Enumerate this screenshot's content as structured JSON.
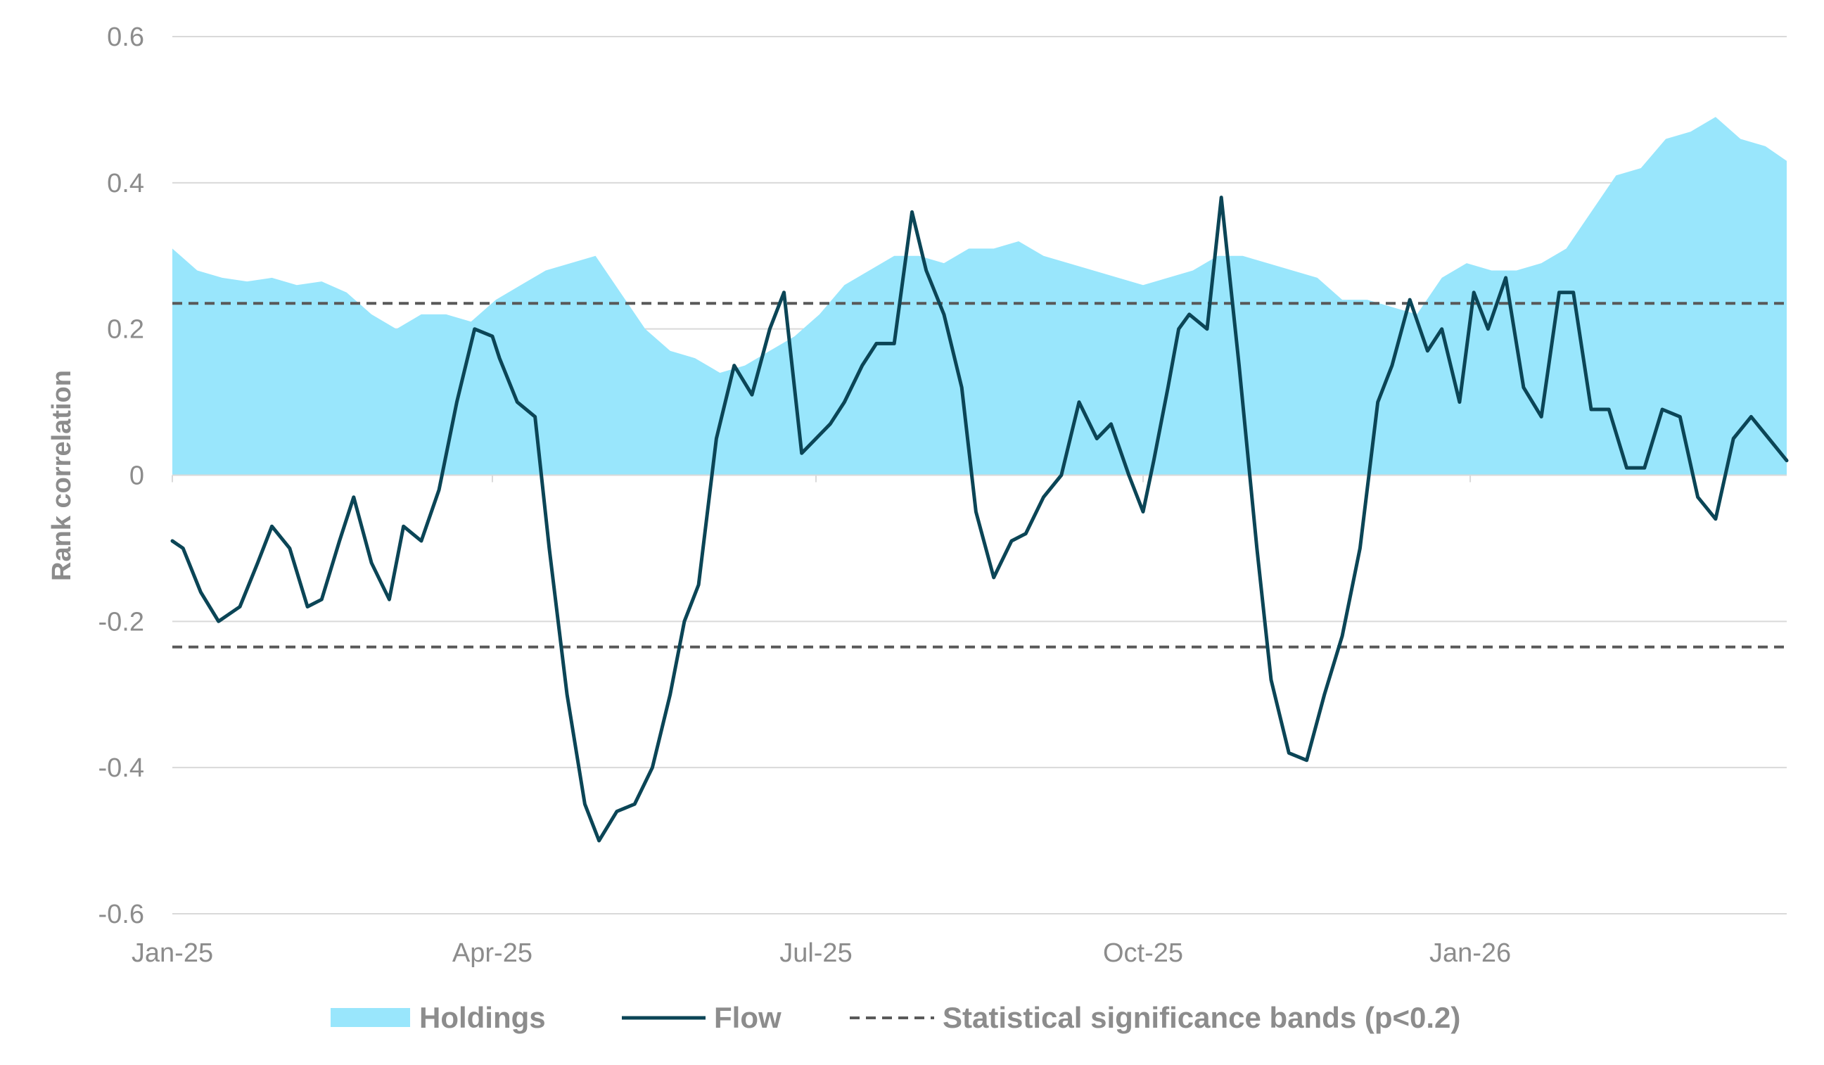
{
  "chart_data": {
    "type": "line",
    "title": "",
    "xlabel": "",
    "ylabel": "Rank correlation",
    "ylim": [
      -0.6,
      0.6
    ],
    "yticks": [
      -0.6,
      -0.4,
      -0.2,
      0,
      0.2,
      0.4,
      0.6
    ],
    "ytick_labels": [
      "-0.6",
      "-0.4",
      "-0.2",
      "0",
      "0.2",
      "0.4",
      "0.6"
    ],
    "xlim": [
      "2025-01-01",
      "2026-03-31"
    ],
    "xticks": [
      "2025-01-01",
      "2025-04-01",
      "2025-07-01",
      "2025-10-01",
      "2026-01-01"
    ],
    "xtick_labels": [
      "Jan-25",
      "Apr-25",
      "Jul-25",
      "Oct-25",
      "Jan-26"
    ],
    "grid": "horizontal",
    "legend": "bottom",
    "colors": {
      "holdings": "#99e6fc",
      "flow": "#0b4556",
      "bands": "#595959",
      "grid": "#d9d9d9",
      "text": "#8c8c8c"
    },
    "significance_bands": [
      0.235,
      -0.235
    ],
    "series": [
      {
        "name": "Holdings",
        "type": "area",
        "x": [
          "2025-01-01",
          "2025-01-08",
          "2025-01-15",
          "2025-01-22",
          "2025-01-29",
          "2025-02-05",
          "2025-02-12",
          "2025-02-19",
          "2025-02-26",
          "2025-03-05",
          "2025-03-12",
          "2025-03-19",
          "2025-03-26",
          "2025-04-02",
          "2025-04-09",
          "2025-04-16",
          "2025-04-23",
          "2025-04-30",
          "2025-05-07",
          "2025-05-14",
          "2025-05-21",
          "2025-05-28",
          "2025-06-04",
          "2025-06-11",
          "2025-06-18",
          "2025-06-25",
          "2025-07-02",
          "2025-07-09",
          "2025-07-16",
          "2025-07-23",
          "2025-07-30",
          "2025-08-06",
          "2025-08-13",
          "2025-08-20",
          "2025-08-27",
          "2025-09-03",
          "2025-09-10",
          "2025-09-17",
          "2025-09-24",
          "2025-10-01",
          "2025-10-08",
          "2025-10-15",
          "2025-10-22",
          "2025-10-29",
          "2025-11-05",
          "2025-11-12",
          "2025-11-19",
          "2025-11-26",
          "2025-12-03",
          "2025-12-10",
          "2025-12-17",
          "2025-12-24",
          "2025-12-31",
          "2026-01-07",
          "2026-01-14",
          "2026-01-21",
          "2026-01-28",
          "2026-02-04",
          "2026-02-11",
          "2026-02-18",
          "2026-02-25",
          "2026-03-04",
          "2026-03-11",
          "2026-03-18",
          "2026-03-25",
          "2026-03-31"
        ],
        "values": [
          0.31,
          0.28,
          0.27,
          0.265,
          0.27,
          0.26,
          0.265,
          0.25,
          0.22,
          0.2,
          0.22,
          0.22,
          0.21,
          0.24,
          0.26,
          0.28,
          0.29,
          0.3,
          0.25,
          0.2,
          0.17,
          0.16,
          0.14,
          0.15,
          0.17,
          0.19,
          0.22,
          0.26,
          0.28,
          0.3,
          0.3,
          0.29,
          0.31,
          0.31,
          0.32,
          0.3,
          0.29,
          0.28,
          0.27,
          0.26,
          0.27,
          0.28,
          0.3,
          0.3,
          0.29,
          0.28,
          0.27,
          0.24,
          0.24,
          0.23,
          0.22,
          0.27,
          0.29,
          0.28,
          0.28,
          0.29,
          0.31,
          0.36,
          0.41,
          0.42,
          0.46,
          0.47,
          0.49,
          0.46,
          0.45,
          0.43
        ]
      },
      {
        "name": "Flow",
        "type": "line",
        "x": [
          "2025-01-01",
          "2025-01-04",
          "2025-01-09",
          "2025-01-14",
          "2025-01-20",
          "2025-01-25",
          "2025-01-29",
          "2025-02-03",
          "2025-02-08",
          "2025-02-12",
          "2025-02-17",
          "2025-02-21",
          "2025-02-26",
          "2025-03-03",
          "2025-03-07",
          "2025-03-12",
          "2025-03-17",
          "2025-03-22",
          "2025-03-27",
          "2025-04-01",
          "2025-04-03",
          "2025-04-08",
          "2025-04-13",
          "2025-04-17",
          "2025-04-22",
          "2025-04-27",
          "2025-05-01",
          "2025-05-06",
          "2025-05-11",
          "2025-05-16",
          "2025-05-21",
          "2025-05-25",
          "2025-05-29",
          "2025-06-03",
          "2025-06-08",
          "2025-06-13",
          "2025-06-18",
          "2025-06-22",
          "2025-06-27",
          "2025-07-01",
          "2025-07-05",
          "2025-07-09",
          "2025-07-14",
          "2025-07-18",
          "2025-07-23",
          "2025-07-28",
          "2025-08-01",
          "2025-08-06",
          "2025-08-11",
          "2025-08-15",
          "2025-08-20",
          "2025-08-25",
          "2025-08-29",
          "2025-09-03",
          "2025-09-08",
          "2025-09-13",
          "2025-09-18",
          "2025-09-22",
          "2025-09-27",
          "2025-10-01",
          "2025-10-04",
          "2025-10-08",
          "2025-10-11",
          "2025-10-14",
          "2025-10-19",
          "2025-10-23",
          "2025-10-28",
          "2025-11-02",
          "2025-11-06",
          "2025-11-11",
          "2025-11-16",
          "2025-11-21",
          "2025-11-26",
          "2025-12-01",
          "2025-12-06",
          "2025-12-10",
          "2025-12-15",
          "2025-12-20",
          "2025-12-24",
          "2025-12-29",
          "2026-01-02",
          "2026-01-06",
          "2026-01-11",
          "2026-01-16",
          "2026-01-21",
          "2026-01-26",
          "2026-01-30",
          "2026-02-04",
          "2026-02-09",
          "2026-02-14",
          "2026-02-19",
          "2026-02-24",
          "2026-03-01",
          "2026-03-06",
          "2026-03-11",
          "2026-03-16",
          "2026-03-21",
          "2026-03-26",
          "2026-03-31"
        ],
        "values": [
          -0.09,
          -0.1,
          -0.16,
          -0.2,
          -0.18,
          -0.12,
          -0.07,
          -0.1,
          -0.18,
          -0.17,
          -0.09,
          -0.03,
          -0.12,
          -0.17,
          -0.07,
          -0.09,
          -0.02,
          0.1,
          0.2,
          0.19,
          0.16,
          0.1,
          0.08,
          -0.1,
          -0.3,
          -0.45,
          -0.5,
          -0.46,
          -0.45,
          -0.4,
          -0.3,
          -0.2,
          -0.15,
          0.05,
          0.15,
          0.11,
          0.2,
          0.25,
          0.03,
          0.05,
          0.07,
          0.1,
          0.15,
          0.18,
          0.18,
          0.36,
          0.28,
          0.22,
          0.12,
          -0.05,
          -0.14,
          -0.09,
          -0.08,
          -0.03,
          0.0,
          0.1,
          0.05,
          0.07,
          0.0,
          -0.05,
          0.02,
          0.12,
          0.2,
          0.22,
          0.2,
          0.38,
          0.15,
          -0.1,
          -0.28,
          -0.38,
          -0.39,
          -0.3,
          -0.22,
          -0.1,
          0.1,
          0.15,
          0.24,
          0.17,
          0.2,
          0.1,
          0.25,
          0.2,
          0.27,
          0.12,
          0.08,
          0.25,
          0.25,
          0.09,
          0.09,
          0.01,
          0.01,
          0.09,
          0.08,
          -0.03,
          -0.06,
          0.05,
          0.08,
          0.05,
          0.02
        ]
      },
      {
        "name": "Statistical significance bands (p<0.2)",
        "type": "dashed-line",
        "values": [
          0.235,
          -0.235
        ]
      }
    ]
  }
}
